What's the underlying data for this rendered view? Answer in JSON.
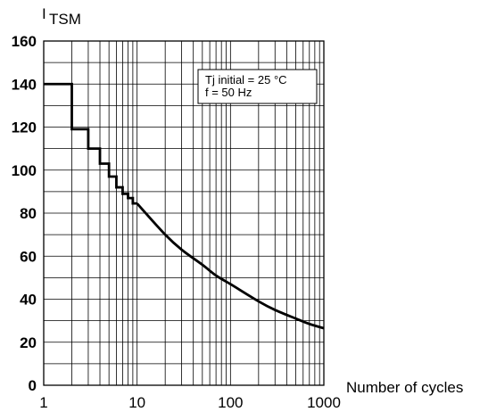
{
  "chart_data": {
    "type": "line",
    "title": "",
    "ylabel_prefix": "I",
    "ylabel_sub": "TSM",
    "xlabel": "Number of cycles",
    "xscale": "log",
    "xlim": [
      1,
      1000
    ],
    "ylim": [
      0,
      160
    ],
    "grid": true,
    "x_ticks": [
      "1",
      "10",
      "100",
      "1000"
    ],
    "y_ticks": [
      "0",
      "20",
      "40",
      "60",
      "80",
      "100",
      "120",
      "140",
      "160"
    ],
    "annotation": {
      "line1": "Tj initial = 25 °C",
      "line2": "f =  50 Hz"
    },
    "series": [
      {
        "step_points": [
          [
            1,
            140
          ],
          [
            2,
            140
          ],
          [
            2,
            119
          ],
          [
            3,
            119
          ],
          [
            3,
            110
          ],
          [
            4,
            110
          ],
          [
            4,
            103
          ],
          [
            5,
            103
          ],
          [
            5,
            97
          ],
          [
            6,
            97
          ],
          [
            6,
            92
          ],
          [
            7,
            92
          ],
          [
            7,
            89
          ],
          [
            8,
            89
          ],
          [
            8,
            87
          ],
          [
            9,
            87
          ],
          [
            9,
            84.5
          ],
          [
            10,
            84.5
          ]
        ],
        "curve_points": [
          [
            10,
            84.5
          ],
          [
            20,
            70
          ],
          [
            30,
            63
          ],
          [
            50,
            56
          ],
          [
            70,
            51
          ],
          [
            100,
            47
          ],
          [
            200,
            39
          ],
          [
            300,
            35
          ],
          [
            500,
            31
          ],
          [
            700,
            28.5
          ],
          [
            1000,
            26.5
          ]
        ]
      }
    ]
  }
}
